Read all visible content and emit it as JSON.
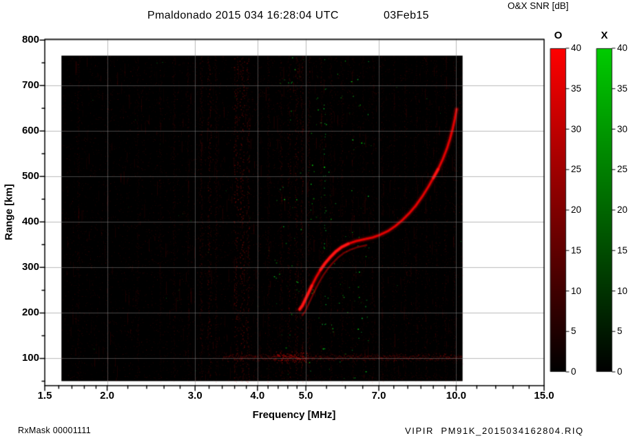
{
  "header": {
    "title": "Pmaldonado 2015 034 16:28:04 UTC",
    "date": "03Feb15",
    "scale_title": "O&X SNR [dB]"
  },
  "footer": {
    "left": "RxMask 00001111",
    "right": "VIPIR  PM91K_2015034162804.RIQ"
  },
  "colors": {
    "background": "#000000",
    "o_mode": "#ff0000",
    "x_mode": "#00cc00",
    "grid": "#808080"
  },
  "chart_data": {
    "type": "heatmap",
    "title": "Pmaldonado 2015 034 16:28:04 UTC 03Feb15",
    "xlabel": "Frequency [MHz]",
    "ylabel": "Range [km]",
    "x_scale": "log",
    "xlim": [
      1.5,
      15.0
    ],
    "ylim": [
      40,
      802
    ],
    "x_ticks": [
      {
        "v": 1.5,
        "label": "1.5"
      },
      {
        "v": 2,
        "label": "2.0"
      },
      {
        "v": 3,
        "label": "3.0"
      },
      {
        "v": 4,
        "label": "4.0"
      },
      {
        "v": 5,
        "label": "5.0"
      },
      {
        "v": 7,
        "label": "7.0"
      },
      {
        "v": 10,
        "label": "10.0"
      },
      {
        "v": 15,
        "label": "15.0"
      }
    ],
    "x_minor_ticks": [
      1.6,
      1.7,
      1.8,
      1.9,
      2.2,
      2.4,
      2.6,
      2.8,
      3.2,
      3.4,
      3.6,
      3.8,
      4.2,
      4.4,
      4.6,
      4.8,
      5.5,
      6,
      6.5,
      7.5,
      8,
      8.5,
      9,
      9.5,
      11,
      12,
      13,
      14
    ],
    "y_ticks": [
      {
        "v": 100,
        "label": "100"
      },
      {
        "v": 200,
        "label": "200"
      },
      {
        "v": 300,
        "label": "300"
      },
      {
        "v": 400,
        "label": "400"
      },
      {
        "v": 500,
        "label": "500"
      },
      {
        "v": 600,
        "label": "600"
      },
      {
        "v": 700,
        "label": "700"
      },
      {
        "v": 800,
        "label": "800"
      }
    ],
    "y_minor_ticks": [
      50,
      150,
      250,
      350,
      450,
      550,
      650,
      750
    ],
    "grid_x": [
      2,
      3,
      4,
      5,
      7,
      10
    ],
    "grid_y": [
      100,
      200,
      300,
      400,
      500,
      600,
      700,
      800
    ],
    "data_extent": {
      "f_mhz": [
        1.62,
        10.3
      ],
      "range_km": [
        50,
        766
      ]
    },
    "snr_scale_db": [
      0,
      40
    ],
    "colorbars": [
      {
        "label": "O",
        "color": "#ff0000",
        "ticks": [
          0,
          5,
          10,
          15,
          20,
          25,
          30,
          35,
          40
        ]
      },
      {
        "label": "X",
        "color": "#00cc00",
        "ticks": [
          0,
          5,
          10,
          15,
          20,
          25,
          30,
          35,
          40
        ]
      }
    ],
    "o_trace_points_f_km": [
      [
        4.86,
        208
      ],
      [
        4.92,
        216
      ],
      [
        4.98,
        228
      ],
      [
        5.06,
        244
      ],
      [
        5.14,
        260
      ],
      [
        5.24,
        278
      ],
      [
        5.35,
        295
      ],
      [
        5.47,
        310
      ],
      [
        5.6,
        323
      ],
      [
        5.74,
        335
      ],
      [
        5.9,
        345
      ],
      [
        6.08,
        352
      ],
      [
        6.3,
        358
      ],
      [
        6.55,
        362
      ],
      [
        6.8,
        366
      ],
      [
        7.05,
        372
      ],
      [
        7.3,
        380
      ],
      [
        7.55,
        391
      ],
      [
        7.8,
        404
      ],
      [
        8.05,
        419
      ],
      [
        8.3,
        436
      ],
      [
        8.55,
        456
      ],
      [
        8.8,
        478
      ],
      [
        9.0,
        497
      ],
      [
        9.2,
        516
      ],
      [
        9.4,
        538
      ],
      [
        9.58,
        561
      ],
      [
        9.72,
        583
      ],
      [
        9.84,
        605
      ],
      [
        9.94,
        627
      ],
      [
        10.02,
        648
      ]
    ],
    "bright_segments_f": [
      [
        4.85,
        5.15
      ],
      [
        5.3,
        6.08
      ],
      [
        8.85,
        9.3
      ]
    ],
    "x_secondary_trace": {
      "f_range": [
        4.86,
        6.6
      ],
      "offset_km": -13
    },
    "e_layer_band": {
      "range_km": 103,
      "half_width_km": 9,
      "f_mhz": [
        3.4,
        10.25
      ],
      "bright_f_mhz": [
        4.3,
        5.05
      ]
    },
    "bottom_band": {
      "range_km": 60,
      "f_mhz": [
        3.6,
        10.2
      ]
    },
    "rfi_stripes": [
      {
        "f": 1.75,
        "a": 0.12,
        "w": 3
      },
      {
        "f": 2.0,
        "a": 0.1,
        "w": 2
      },
      {
        "f": 2.3,
        "a": 0.12,
        "w": 3
      },
      {
        "f": 2.55,
        "a": 0.1,
        "w": 2
      },
      {
        "f": 2.72,
        "a": 0.14,
        "w": 3
      },
      {
        "f": 2.9,
        "a": 0.12,
        "w": 2
      },
      {
        "f": 3.08,
        "a": 0.2,
        "w": 4
      },
      {
        "f": 3.2,
        "a": 0.3,
        "w": 5
      },
      {
        "f": 3.3,
        "a": 0.18,
        "w": 3
      },
      {
        "f": 3.62,
        "a": 0.38,
        "w": 6
      },
      {
        "f": 3.72,
        "a": 0.42,
        "w": 7
      },
      {
        "f": 3.82,
        "a": 0.3,
        "w": 5
      },
      {
        "f": 4.0,
        "a": 0.12,
        "w": 3
      },
      {
        "f": 4.2,
        "a": 0.15,
        "w": 3
      },
      {
        "f": 4.45,
        "a": 0.18,
        "w": 4
      },
      {
        "f": 4.62,
        "a": 0.22,
        "w": 4
      },
      {
        "f": 4.78,
        "a": 0.28,
        "w": 5
      },
      {
        "f": 4.9,
        "a": 0.25,
        "w": 4
      },
      {
        "f": 5.05,
        "a": 0.2,
        "w": 4
      },
      {
        "f": 5.35,
        "a": 0.15,
        "w": 3
      },
      {
        "f": 5.6,
        "a": 0.12,
        "w": 3
      },
      {
        "f": 5.9,
        "a": 0.14,
        "w": 3
      },
      {
        "f": 6.2,
        "a": 0.12,
        "w": 3
      },
      {
        "f": 6.5,
        "a": 0.1,
        "w": 2
      },
      {
        "f": 6.8,
        "a": 0.12,
        "w": 3
      },
      {
        "f": 7.1,
        "a": 0.12,
        "w": 3
      },
      {
        "f": 7.5,
        "a": 0.1,
        "w": 2
      },
      {
        "f": 7.9,
        "a": 0.12,
        "w": 3
      },
      {
        "f": 8.3,
        "a": 0.1,
        "w": 2
      },
      {
        "f": 8.7,
        "a": 0.12,
        "w": 3
      },
      {
        "f": 9.1,
        "a": 0.1,
        "w": 2
      },
      {
        "f": 9.5,
        "a": 0.12,
        "w": 3
      },
      {
        "f": 9.9,
        "a": 0.14,
        "w": 3
      }
    ],
    "noise": {
      "red_speckle_count": 12000,
      "streak_count": 420,
      "green_speckle": {
        "count": 130,
        "f_mhz": [
          4.3,
          6.7
        ],
        "extra_scatter": 45,
        "column_f": 5.45,
        "column_count": 25
      }
    }
  }
}
